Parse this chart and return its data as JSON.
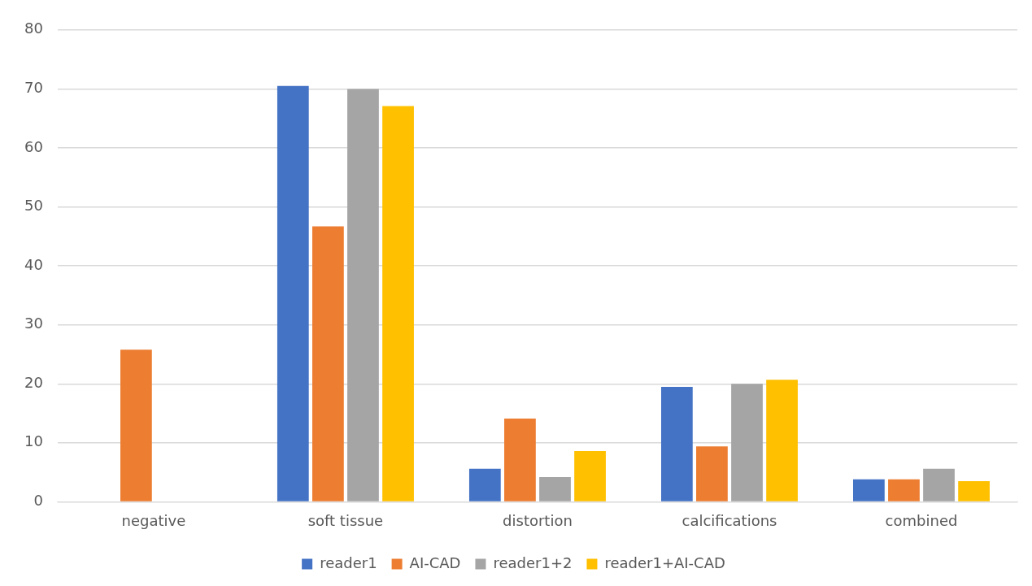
{
  "chart_data": {
    "type": "bar",
    "categories": [
      "negative",
      "soft tissue",
      "distortion",
      "calcifications",
      "combined"
    ],
    "series": [
      {
        "name": "reader1",
        "color": "#4472c4",
        "values": [
          0,
          70.5,
          5.6,
          19.5,
          3.8
        ]
      },
      {
        "name": "AI-CAD",
        "color": "#ed7d31",
        "values": [
          25.8,
          46.7,
          14.1,
          9.4,
          3.8
        ]
      },
      {
        "name": "reader1+2",
        "color": "#a5a5a5",
        "values": [
          0,
          70,
          4.2,
          20,
          5.6
        ]
      },
      {
        "name": "reader1+AI-CAD",
        "color": "#ffc000",
        "values": [
          0,
          67.1,
          8.6,
          20.7,
          3.5
        ]
      }
    ],
    "ylim": [
      0,
      80
    ],
    "yticks": [
      0,
      10,
      20,
      30,
      40,
      50,
      60,
      70,
      80
    ],
    "grid": "y",
    "legend": "bottom"
  }
}
